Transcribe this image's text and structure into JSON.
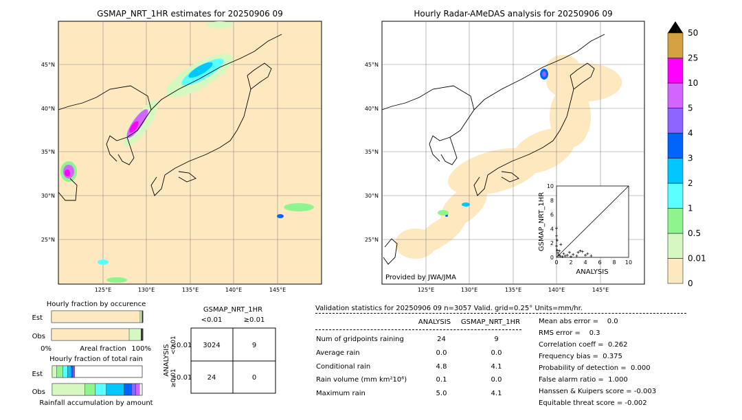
{
  "colors": {
    "map_land_bg": "#fde8c0",
    "map_frame": "#000000",
    "grid": "#888888",
    "scale": [
      "#fde8c0",
      "#d4f8c0",
      "#8ef58e",
      "#5affff",
      "#00c8ff",
      "#0064ff",
      "#8c64ff",
      "#d264ff",
      "#ff00ff",
      "#d4a040"
    ]
  },
  "left_map": {
    "title": "GSMAP_NRT_1HR estimates for 20250906 09",
    "lat_labels": [
      "45°N",
      "40°N",
      "35°N",
      "30°N",
      "25°N"
    ],
    "lon_labels": [
      "125°E",
      "130°E",
      "135°E",
      "140°E",
      "145°E"
    ]
  },
  "right_map": {
    "title": "Hourly Radar-AMeDAS analysis for 20250906 09",
    "lat_labels": [
      "45°N",
      "40°N",
      "35°N",
      "30°N",
      "25°N"
    ],
    "lon_labels": [
      "125°E",
      "130°E",
      "135°E",
      "140°E",
      "145°E"
    ],
    "credit": "Provided by JWA/JMA"
  },
  "colorbar": {
    "labels": [
      "0",
      "0.01",
      "0.5",
      "1",
      "2",
      "3",
      "4",
      "5",
      "10",
      "25",
      "50"
    ],
    "extend_arrow": "triangle-up-icon"
  },
  "chart_data": [
    {
      "type": "scatter",
      "title": "",
      "xlabel": "ANALYSIS",
      "ylabel": "GSMAP_NRT_1HR",
      "xlim": [
        0,
        10
      ],
      "ylim": [
        0,
        10
      ],
      "xticks": [
        "0",
        "2",
        "4",
        "6",
        "8",
        "10"
      ],
      "yticks": [
        "0",
        "2",
        "4",
        "6",
        "8",
        "10"
      ],
      "reference_line": "y=x",
      "points": [
        {
          "x": 0.0,
          "y": 4.1
        },
        {
          "x": 0.0,
          "y": 3.0
        },
        {
          "x": 0.0,
          "y": 1.6
        },
        {
          "x": 0.1,
          "y": 1.0
        },
        {
          "x": 0.2,
          "y": 0.6
        },
        {
          "x": 0.3,
          "y": 0.3
        },
        {
          "x": 0.5,
          "y": 0.2
        },
        {
          "x": 0.8,
          "y": 0.1
        },
        {
          "x": 1.0,
          "y": 0.5
        },
        {
          "x": 1.2,
          "y": 0.2
        },
        {
          "x": 1.5,
          "y": 0.3
        },
        {
          "x": 2.0,
          "y": 0.1
        },
        {
          "x": 2.3,
          "y": 0.4
        },
        {
          "x": 2.8,
          "y": 0.2
        },
        {
          "x": 3.0,
          "y": 0.7
        },
        {
          "x": 3.3,
          "y": 0.9
        },
        {
          "x": 3.6,
          "y": 0.8
        },
        {
          "x": 4.0,
          "y": 0.3
        },
        {
          "x": 4.3,
          "y": 0.5
        },
        {
          "x": 4.8,
          "y": 0.2
        },
        {
          "x": 0.6,
          "y": 1.8
        },
        {
          "x": 0.4,
          "y": 0.9
        },
        {
          "x": 1.8,
          "y": 0.7
        },
        {
          "x": 0.1,
          "y": 2.4
        }
      ]
    },
    {
      "type": "bar",
      "title": "Hourly fraction by occurence",
      "categories": [
        "Est",
        "Obs"
      ],
      "xlabel": "Areal fraction",
      "x_tick_labels": [
        "0%",
        "100%"
      ],
      "series": [
        {
          "values": [
            0.97,
            0.85
          ]
        },
        {
          "values": [
            0.02,
            0.13
          ]
        },
        {
          "values": [
            0.01,
            0.02
          ]
        }
      ]
    },
    {
      "type": "bar",
      "title": "Hourly fraction of total rain",
      "categories": [
        "Est",
        "Obs"
      ],
      "xlabel": "Rainfall accumulation by amount",
      "series": [
        {
          "values": [
            0.05,
            0.36
          ]
        },
        {
          "values": [
            0.07,
            0.12
          ]
        },
        {
          "values": [
            0.05,
            0.12
          ]
        },
        {
          "values": [
            0.04,
            0.2
          ]
        },
        {
          "values": [
            0.02,
            0.08
          ]
        },
        {
          "values": [
            0.02,
            0.05
          ]
        },
        {
          "values": [
            0.0,
            0.04
          ]
        }
      ]
    }
  ],
  "contingency": {
    "title": "GSMAP_NRT_1HR",
    "col_headers": [
      "<0.01",
      "≥0.01"
    ],
    "row_axis_label": "ANALYSIS",
    "row_headers": [
      "<0.01",
      "≥0.01"
    ],
    "cells": [
      [
        "3024",
        "9"
      ],
      [
        "24",
        "0"
      ]
    ]
  },
  "validation": {
    "header": "Validation statistics for 20250906 09  n=3057 Valid. grid=0.25° Units=mm/hr.",
    "col_headers": [
      "ANALYSIS",
      "GSMAP_NRT_1HR"
    ],
    "rows": [
      {
        "label": "Num of gridpoints raining",
        "analysis": "24",
        "gsmap": "9"
      },
      {
        "label": "Average rain",
        "analysis": "0.0",
        "gsmap": "0.0"
      },
      {
        "label": "Conditional rain",
        "analysis": "4.8",
        "gsmap": "4.1"
      },
      {
        "label": "Rain volume (mm km²10⁶)",
        "analysis": "0.1",
        "gsmap": "0.0"
      },
      {
        "label": "Maximum rain",
        "analysis": "5.0",
        "gsmap": "4.1"
      }
    ],
    "scores": [
      "Mean abs error =    0.0",
      "RMS error =    0.3",
      "Correlation coeff =  0.262",
      "Frequency bias =  0.375",
      "Probability of detection =  0.000",
      "False alarm ratio =  1.000",
      "Hanssen & Kuipers score = -0.003",
      "Equitable threat score = -0.002"
    ]
  }
}
